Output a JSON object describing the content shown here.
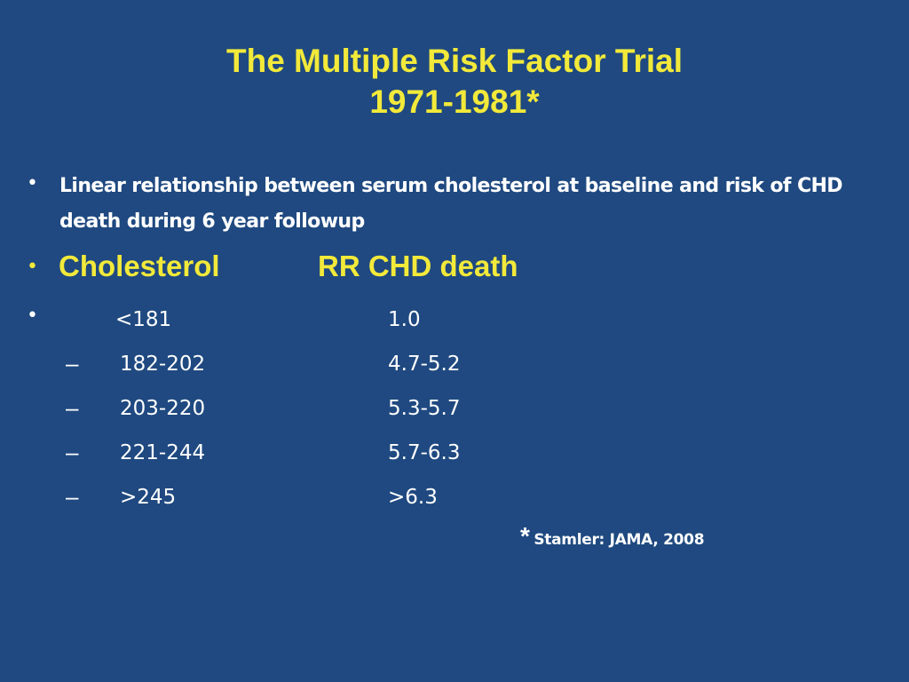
{
  "title": {
    "line1": "The Multiple Risk Factor Trial",
    "line2": "1971-1981*"
  },
  "intro": "Linear relationship between serum cholesterol at baseline and risk of CHD death during  6 year followup",
  "table_header": {
    "col1": "Cholesterol",
    "col2": "RR CHD death"
  },
  "rows": [
    {
      "cholesterol": "<181",
      "rr": "1.0"
    },
    {
      "cholesterol": "182-202",
      "rr": "4.7-5.2"
    },
    {
      "cholesterol": "203-220",
      "rr": "5.3-5.7"
    },
    {
      "cholesterol": "221-244",
      "rr": "5.7-6.3"
    },
    {
      "cholesterol": ">245",
      "rr": ">6.3"
    }
  ],
  "citation": {
    "marker": "*",
    "text": "Stamler: JAMA, 2008"
  },
  "colors": {
    "background": "#1f4980",
    "title": "#f2e93a",
    "body_text": "#ffffff"
  }
}
